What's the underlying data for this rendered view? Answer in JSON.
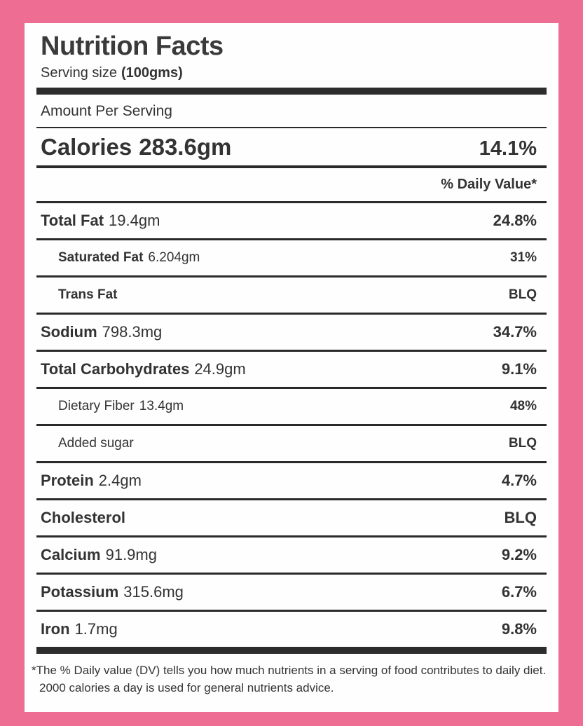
{
  "label": {
    "title": "Nutrition Facts",
    "serving_size_label": "Serving size",
    "serving_size_value": "(100gms)",
    "amount_per_serving": "Amount Per Serving",
    "calories_label": "Calories",
    "calories_amount": "283.6gm",
    "calories_daily_value": "14.1%",
    "daily_value_header": "% Daily Value*",
    "rows": [
      {
        "name": "Total Fat",
        "amount": "19.4gm",
        "dv": "24.8%"
      },
      {
        "name": "Saturated Fat",
        "amount": "6.204gm",
        "dv": "31%"
      },
      {
        "name": "Trans Fat",
        "amount": "",
        "dv": "BLQ"
      },
      {
        "name": "Sodium",
        "amount": "798.3mg",
        "dv": "34.7%"
      },
      {
        "name": "Total Carbohydrates",
        "amount": "24.9gm",
        "dv": "9.1%"
      },
      {
        "name": "Dietary Fiber",
        "amount": "13.4gm",
        "dv": "48%"
      },
      {
        "name": "Added sugar",
        "amount": "",
        "dv": "BLQ"
      },
      {
        "name": "Protein",
        "amount": "2.4gm",
        "dv": "4.7%"
      },
      {
        "name": "Cholesterol",
        "amount": "",
        "dv": "BLQ"
      },
      {
        "name": "Calcium",
        "amount": "91.9mg",
        "dv": "9.2%"
      },
      {
        "name": "Potassium",
        "amount": "315.6mg",
        "dv": "6.7%"
      },
      {
        "name": "Iron",
        "amount": "1.7mg",
        "dv": "9.8%"
      }
    ],
    "footnote_line1": "*The % Daily value (DV) tells you how much nutrients in a serving of food contributes to daily diet.",
    "footnote_line2": "2000 calories a day is used for general nutrients advice.",
    "colors": {
      "background_pink": "#ee6d92",
      "card_white": "#fefefe",
      "ink": "#2d2d2d"
    }
  }
}
